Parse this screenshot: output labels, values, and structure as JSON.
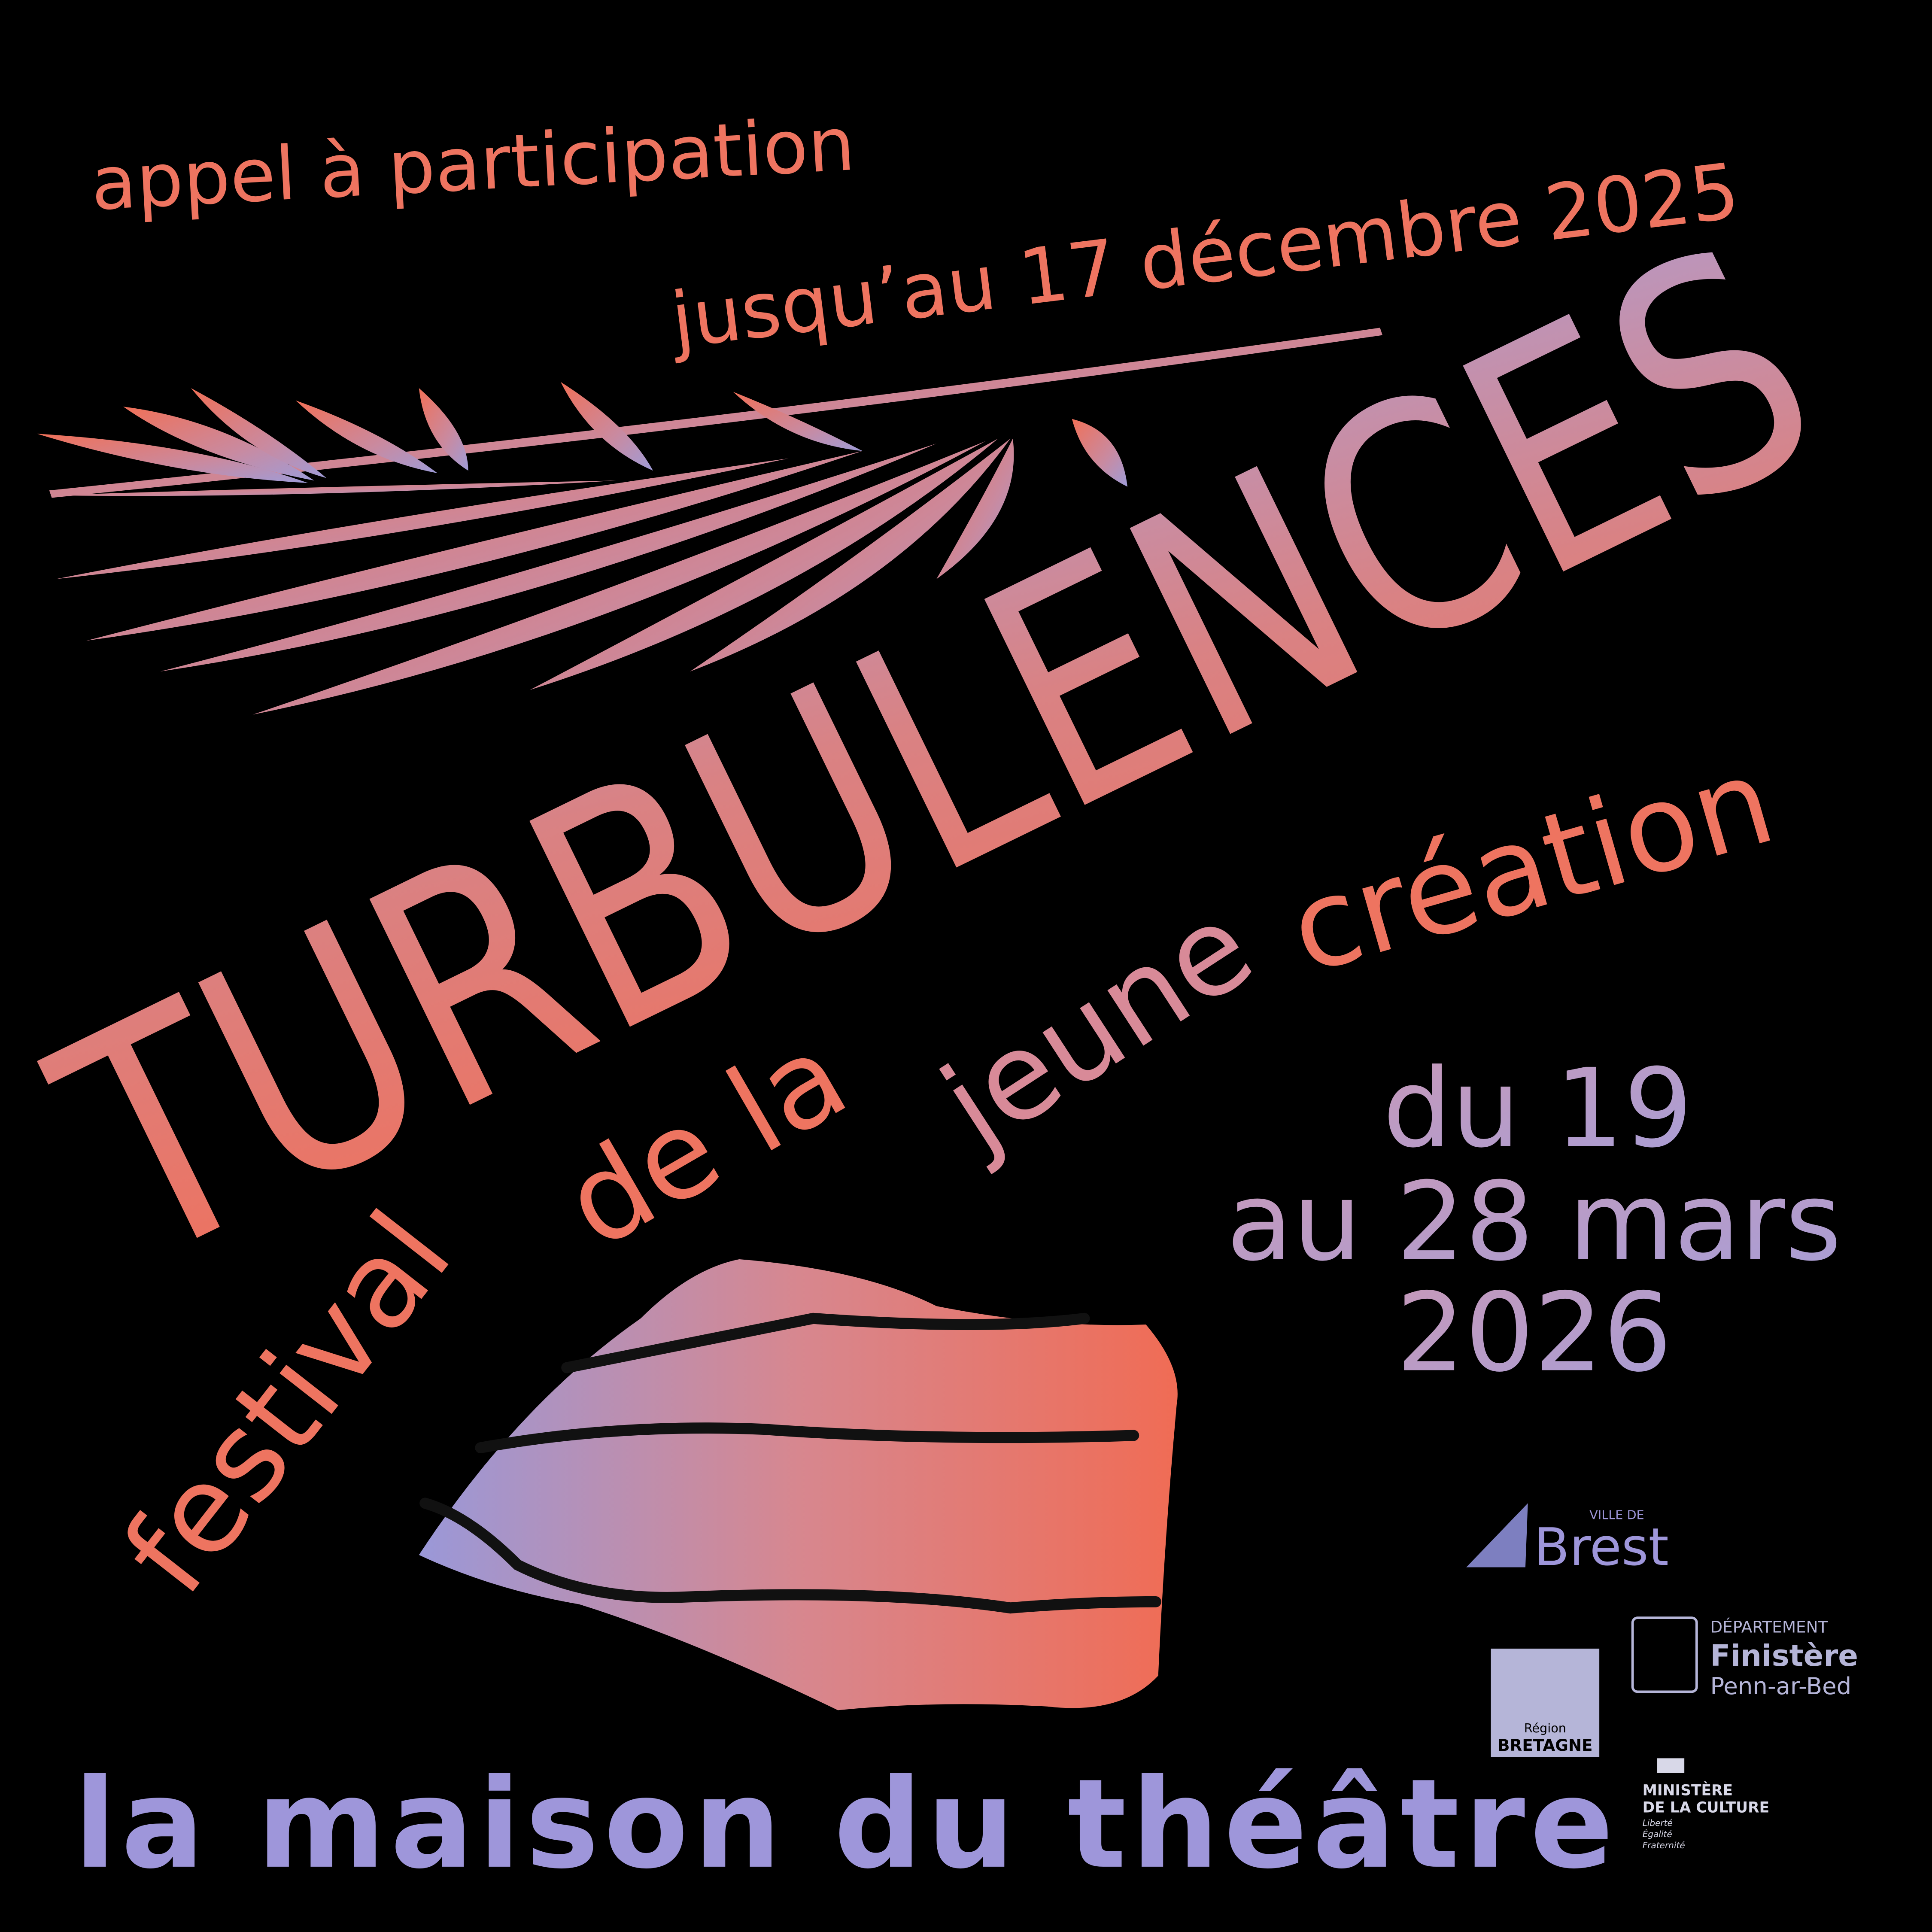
{
  "header": {
    "call": "appel à participation",
    "deadline": "jusqu’au 17 décembre 2025"
  },
  "title": "TURBULENCES",
  "subtitle": {
    "words": [
      "festival",
      "de la",
      "jeune",
      "création"
    ]
  },
  "dates": [
    "du 19",
    "au 28 mars",
    "2026"
  ],
  "venue": "la maison du théâtre",
  "partners": {
    "brest": {
      "prefix": "VILLE DE",
      "name": "Brest"
    },
    "finistere": {
      "prefix": "DÉPARTEMENT",
      "name": "Finistère",
      "sub": "Penn-ar-Bed"
    },
    "bretagne": {
      "prefix": "Région",
      "name": "BRETAGNE"
    },
    "culture": {
      "lines": [
        "MINISTÈRE",
        "DE LA CULTURE"
      ],
      "motto": [
        "Liberté",
        "Égalité",
        "Fraternité"
      ]
    }
  }
}
